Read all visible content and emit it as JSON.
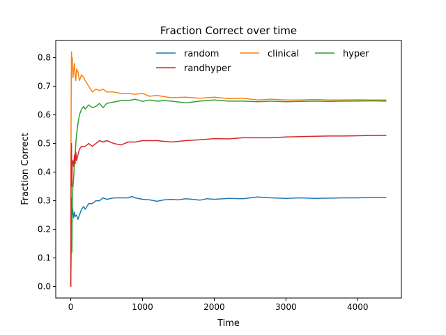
{
  "chart_data": {
    "type": "line",
    "title": "Fraction Correct over time",
    "xlabel": "Time",
    "ylabel": "Fraction Correct",
    "xlim": [
      -210,
      4610
    ],
    "ylim": [
      -0.04,
      0.86
    ],
    "xticks": [
      0,
      1000,
      2000,
      3000,
      4000
    ],
    "yticks": [
      0.0,
      0.1,
      0.2,
      0.3,
      0.4,
      0.5,
      0.6,
      0.7,
      0.8
    ],
    "grid": false,
    "legend_position": "top-right",
    "legend_columns": 3,
    "series": [
      {
        "name": "random",
        "color": "#1f77b4",
        "x": [
          0,
          5,
          10,
          15,
          20,
          30,
          40,
          50,
          60,
          80,
          100,
          120,
          150,
          180,
          200,
          250,
          300,
          350,
          400,
          450,
          500,
          600,
          700,
          800,
          850,
          900,
          1000,
          1100,
          1200,
          1300,
          1400,
          1500,
          1600,
          1700,
          1800,
          1900,
          2000,
          2200,
          2400,
          2600,
          2800,
          3000,
          3200,
          3400,
          3600,
          3800,
          4000,
          4200,
          4400
        ],
        "y": [
          0.0,
          0.2,
          0.25,
          0.31,
          0.28,
          0.26,
          0.24,
          0.26,
          0.245,
          0.25,
          0.235,
          0.25,
          0.27,
          0.28,
          0.27,
          0.29,
          0.29,
          0.3,
          0.3,
          0.31,
          0.305,
          0.31,
          0.31,
          0.31,
          0.315,
          0.31,
          0.305,
          0.303,
          0.298,
          0.303,
          0.305,
          0.303,
          0.307,
          0.305,
          0.302,
          0.307,
          0.305,
          0.308,
          0.307,
          0.313,
          0.31,
          0.308,
          0.31,
          0.308,
          0.309,
          0.31,
          0.31,
          0.312,
          0.312
        ]
      },
      {
        "name": "clinical",
        "color": "#ff7f0e",
        "x": [
          0,
          3,
          6,
          10,
          15,
          20,
          30,
          40,
          50,
          60,
          70,
          80,
          100,
          120,
          150,
          180,
          200,
          250,
          300,
          350,
          400,
          450,
          500,
          600,
          700,
          800,
          900,
          1000,
          1100,
          1200,
          1400,
          1600,
          1800,
          2000,
          2200,
          2400,
          2600,
          2800,
          3000,
          3200,
          3400,
          3600,
          3800,
          4000,
          4200,
          4400
        ],
        "y": [
          0.0,
          0.5,
          0.7,
          0.82,
          0.78,
          0.8,
          0.73,
          0.76,
          0.78,
          0.74,
          0.72,
          0.76,
          0.75,
          0.72,
          0.74,
          0.73,
          0.72,
          0.7,
          0.68,
          0.69,
          0.685,
          0.69,
          0.68,
          0.68,
          0.675,
          0.675,
          0.672,
          0.675,
          0.665,
          0.668,
          0.66,
          0.662,
          0.658,
          0.662,
          0.657,
          0.658,
          0.652,
          0.655,
          0.652,
          0.652,
          0.654,
          0.652,
          0.652,
          0.653,
          0.652,
          0.652
        ]
      },
      {
        "name": "hyper",
        "color": "#2ca02c",
        "x": [
          0,
          5,
          10,
          15,
          20,
          30,
          40,
          50,
          60,
          70,
          80,
          100,
          120,
          150,
          180,
          200,
          250,
          300,
          350,
          400,
          450,
          500,
          600,
          700,
          800,
          900,
          1000,
          1100,
          1200,
          1300,
          1400,
          1600,
          1800,
          2000,
          2200,
          2400,
          2600,
          2800,
          3000,
          3200,
          3400,
          3600,
          3800,
          4000,
          4200,
          4400
        ],
        "y": [
          0.0,
          0.12,
          0.17,
          0.12,
          0.3,
          0.35,
          0.38,
          0.43,
          0.46,
          0.5,
          0.53,
          0.57,
          0.6,
          0.62,
          0.63,
          0.62,
          0.635,
          0.625,
          0.63,
          0.64,
          0.625,
          0.64,
          0.645,
          0.65,
          0.65,
          0.655,
          0.647,
          0.652,
          0.648,
          0.65,
          0.648,
          0.642,
          0.648,
          0.652,
          0.648,
          0.648,
          0.646,
          0.648,
          0.646,
          0.647,
          0.648,
          0.647,
          0.648,
          0.648,
          0.649,
          0.648
        ]
      },
      {
        "name": "randhyper",
        "color": "#d62728",
        "x": [
          0,
          5,
          10,
          15,
          20,
          30,
          40,
          50,
          60,
          70,
          80,
          100,
          120,
          150,
          200,
          250,
          300,
          350,
          400,
          450,
          500,
          600,
          700,
          800,
          900,
          1000,
          1200,
          1400,
          1600,
          1800,
          2000,
          2200,
          2400,
          2600,
          2800,
          3000,
          3200,
          3400,
          3600,
          3800,
          4000,
          4200,
          4400
        ],
        "y": [
          0.0,
          0.45,
          0.5,
          0.35,
          0.43,
          0.44,
          0.42,
          0.46,
          0.43,
          0.47,
          0.44,
          0.46,
          0.48,
          0.49,
          0.49,
          0.5,
          0.49,
          0.5,
          0.51,
          0.505,
          0.51,
          0.5,
          0.495,
          0.505,
          0.505,
          0.51,
          0.51,
          0.505,
          0.51,
          0.513,
          0.517,
          0.516,
          0.52,
          0.52,
          0.52,
          0.523,
          0.524,
          0.525,
          0.526,
          0.526,
          0.527,
          0.528,
          0.528
        ]
      }
    ]
  }
}
